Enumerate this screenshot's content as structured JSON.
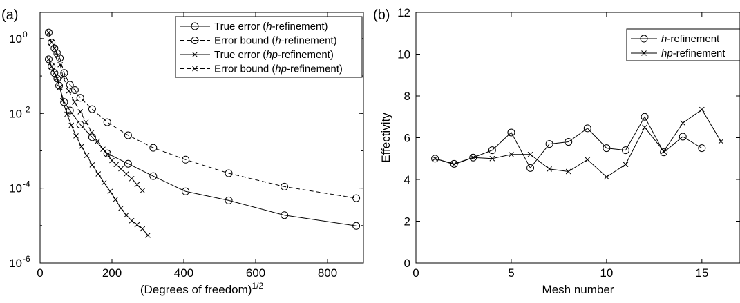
{
  "chart_data": [
    {
      "panel": "(a)",
      "type": "line",
      "xlabel": "(Degrees of freedom)",
      "xlabel_superscript": "1/2",
      "ylabel": "",
      "xlim": [
        0,
        900
      ],
      "ylim": [
        1e-06,
        5
      ],
      "yscale": "log",
      "grid": false,
      "legend_position": "top-right",
      "xticks": [
        0,
        200,
        400,
        600,
        800
      ],
      "yticks": [
        {
          "value": 1e-06,
          "base": "10",
          "exp": "-6"
        },
        {
          "value": 0.0001,
          "base": "10",
          "exp": "-4"
        },
        {
          "value": 0.01,
          "base": "10",
          "exp": "-2"
        },
        {
          "value": 1,
          "base": "10",
          "exp": "0"
        }
      ],
      "series": [
        {
          "legend": [
            "True error (",
            "h",
            "-refinement)"
          ],
          "line": "solid",
          "marker": "circle",
          "x": [
            24,
            32,
            40,
            48,
            53,
            67,
            83,
            112,
            145,
            187,
            245,
            315,
            405,
            525,
            680,
            880
          ],
          "y": [
            0.28,
            0.18,
            0.12,
            0.085,
            0.055,
            0.02,
            0.012,
            0.005,
            0.0023,
            0.00085,
            0.00045,
            0.00021,
            8.2e-05,
            4.7e-05,
            1.9e-05,
            9.8e-06
          ]
        },
        {
          "legend": [
            "Error bound (",
            "h",
            "-refinement)"
          ],
          "line": "dashed",
          "marker": "circle",
          "x": [
            24,
            32,
            40,
            48,
            55,
            67,
            83,
            97,
            112,
            145,
            187,
            245,
            315,
            405,
            525,
            680,
            880
          ],
          "y": [
            1.45,
            0.78,
            0.55,
            0.4,
            0.3,
            0.12,
            0.058,
            0.042,
            0.026,
            0.013,
            0.0058,
            0.0026,
            0.0012,
            0.00058,
            0.00025,
            0.00011,
            5.4e-05
          ]
        },
        {
          "legend": [
            "True error (",
            "hp",
            "-refinement)"
          ],
          "line": "solid",
          "marker": "x",
          "x": [
            24,
            32,
            40,
            47,
            55,
            63,
            75,
            87,
            100,
            115,
            130,
            145,
            162,
            178,
            195,
            210,
            225,
            240,
            255,
            270,
            285,
            300
          ],
          "y": [
            0.28,
            0.18,
            0.12,
            0.085,
            0.05,
            0.022,
            0.0095,
            0.0048,
            0.0025,
            0.0013,
            0.00075,
            0.00042,
            0.00024,
            0.00014,
            8.2e-05,
            5e-05,
            2.9e-05,
            1.9e-05,
            1.35e-05,
            1.05e-05,
            8.2e-06,
            5.5e-06
          ]
        },
        {
          "legend": [
            "Error bound (",
            "hp",
            "-refinement)"
          ],
          "line": "dashed",
          "marker": "x",
          "x": [
            24,
            32,
            40,
            48,
            56,
            64,
            80,
            96,
            112,
            128,
            144,
            160,
            175,
            188,
            200,
            212,
            225,
            240,
            255,
            270,
            285
          ],
          "y": [
            1.45,
            0.78,
            0.55,
            0.35,
            0.2,
            0.095,
            0.04,
            0.02,
            0.011,
            0.0058,
            0.0031,
            0.0018,
            0.0011,
            0.00078,
            0.00055,
            0.00043,
            0.00033,
            0.00024,
            0.00018,
            0.000125,
            8.6e-05
          ]
        }
      ]
    },
    {
      "panel": "(b)",
      "type": "line",
      "xlabel": "Mesh number",
      "ylabel": "Effectivity",
      "xlim": [
        0,
        17
      ],
      "ylim": [
        0,
        12
      ],
      "yscale": "linear",
      "grid": false,
      "legend_position": "top-right",
      "xticks": [
        0,
        5,
        10,
        15
      ],
      "yticks": [
        0,
        2,
        4,
        6,
        8,
        10,
        12
      ],
      "series": [
        {
          "legend": [
            "",
            "h",
            "-refinement"
          ],
          "line": "solid",
          "marker": "circle",
          "x": [
            1,
            2,
            3,
            4,
            5,
            6,
            7,
            8,
            9,
            10,
            11,
            12,
            13,
            14,
            15
          ],
          "y": [
            5.0,
            4.75,
            5.05,
            5.4,
            6.25,
            4.55,
            5.7,
            5.8,
            6.45,
            5.5,
            5.4,
            7.0,
            5.3,
            6.05,
            5.5
          ]
        },
        {
          "legend": [
            "",
            "hp",
            "-refinement"
          ],
          "line": "solid",
          "marker": "x",
          "x": [
            1,
            2,
            3,
            4,
            5,
            6,
            7,
            8,
            9,
            10,
            11,
            12,
            13,
            14,
            15,
            16
          ],
          "y": [
            5.0,
            4.72,
            5.05,
            5.0,
            5.2,
            5.2,
            4.5,
            4.38,
            4.95,
            4.12,
            4.72,
            6.5,
            5.35,
            6.7,
            7.35,
            5.82
          ]
        }
      ]
    }
  ]
}
